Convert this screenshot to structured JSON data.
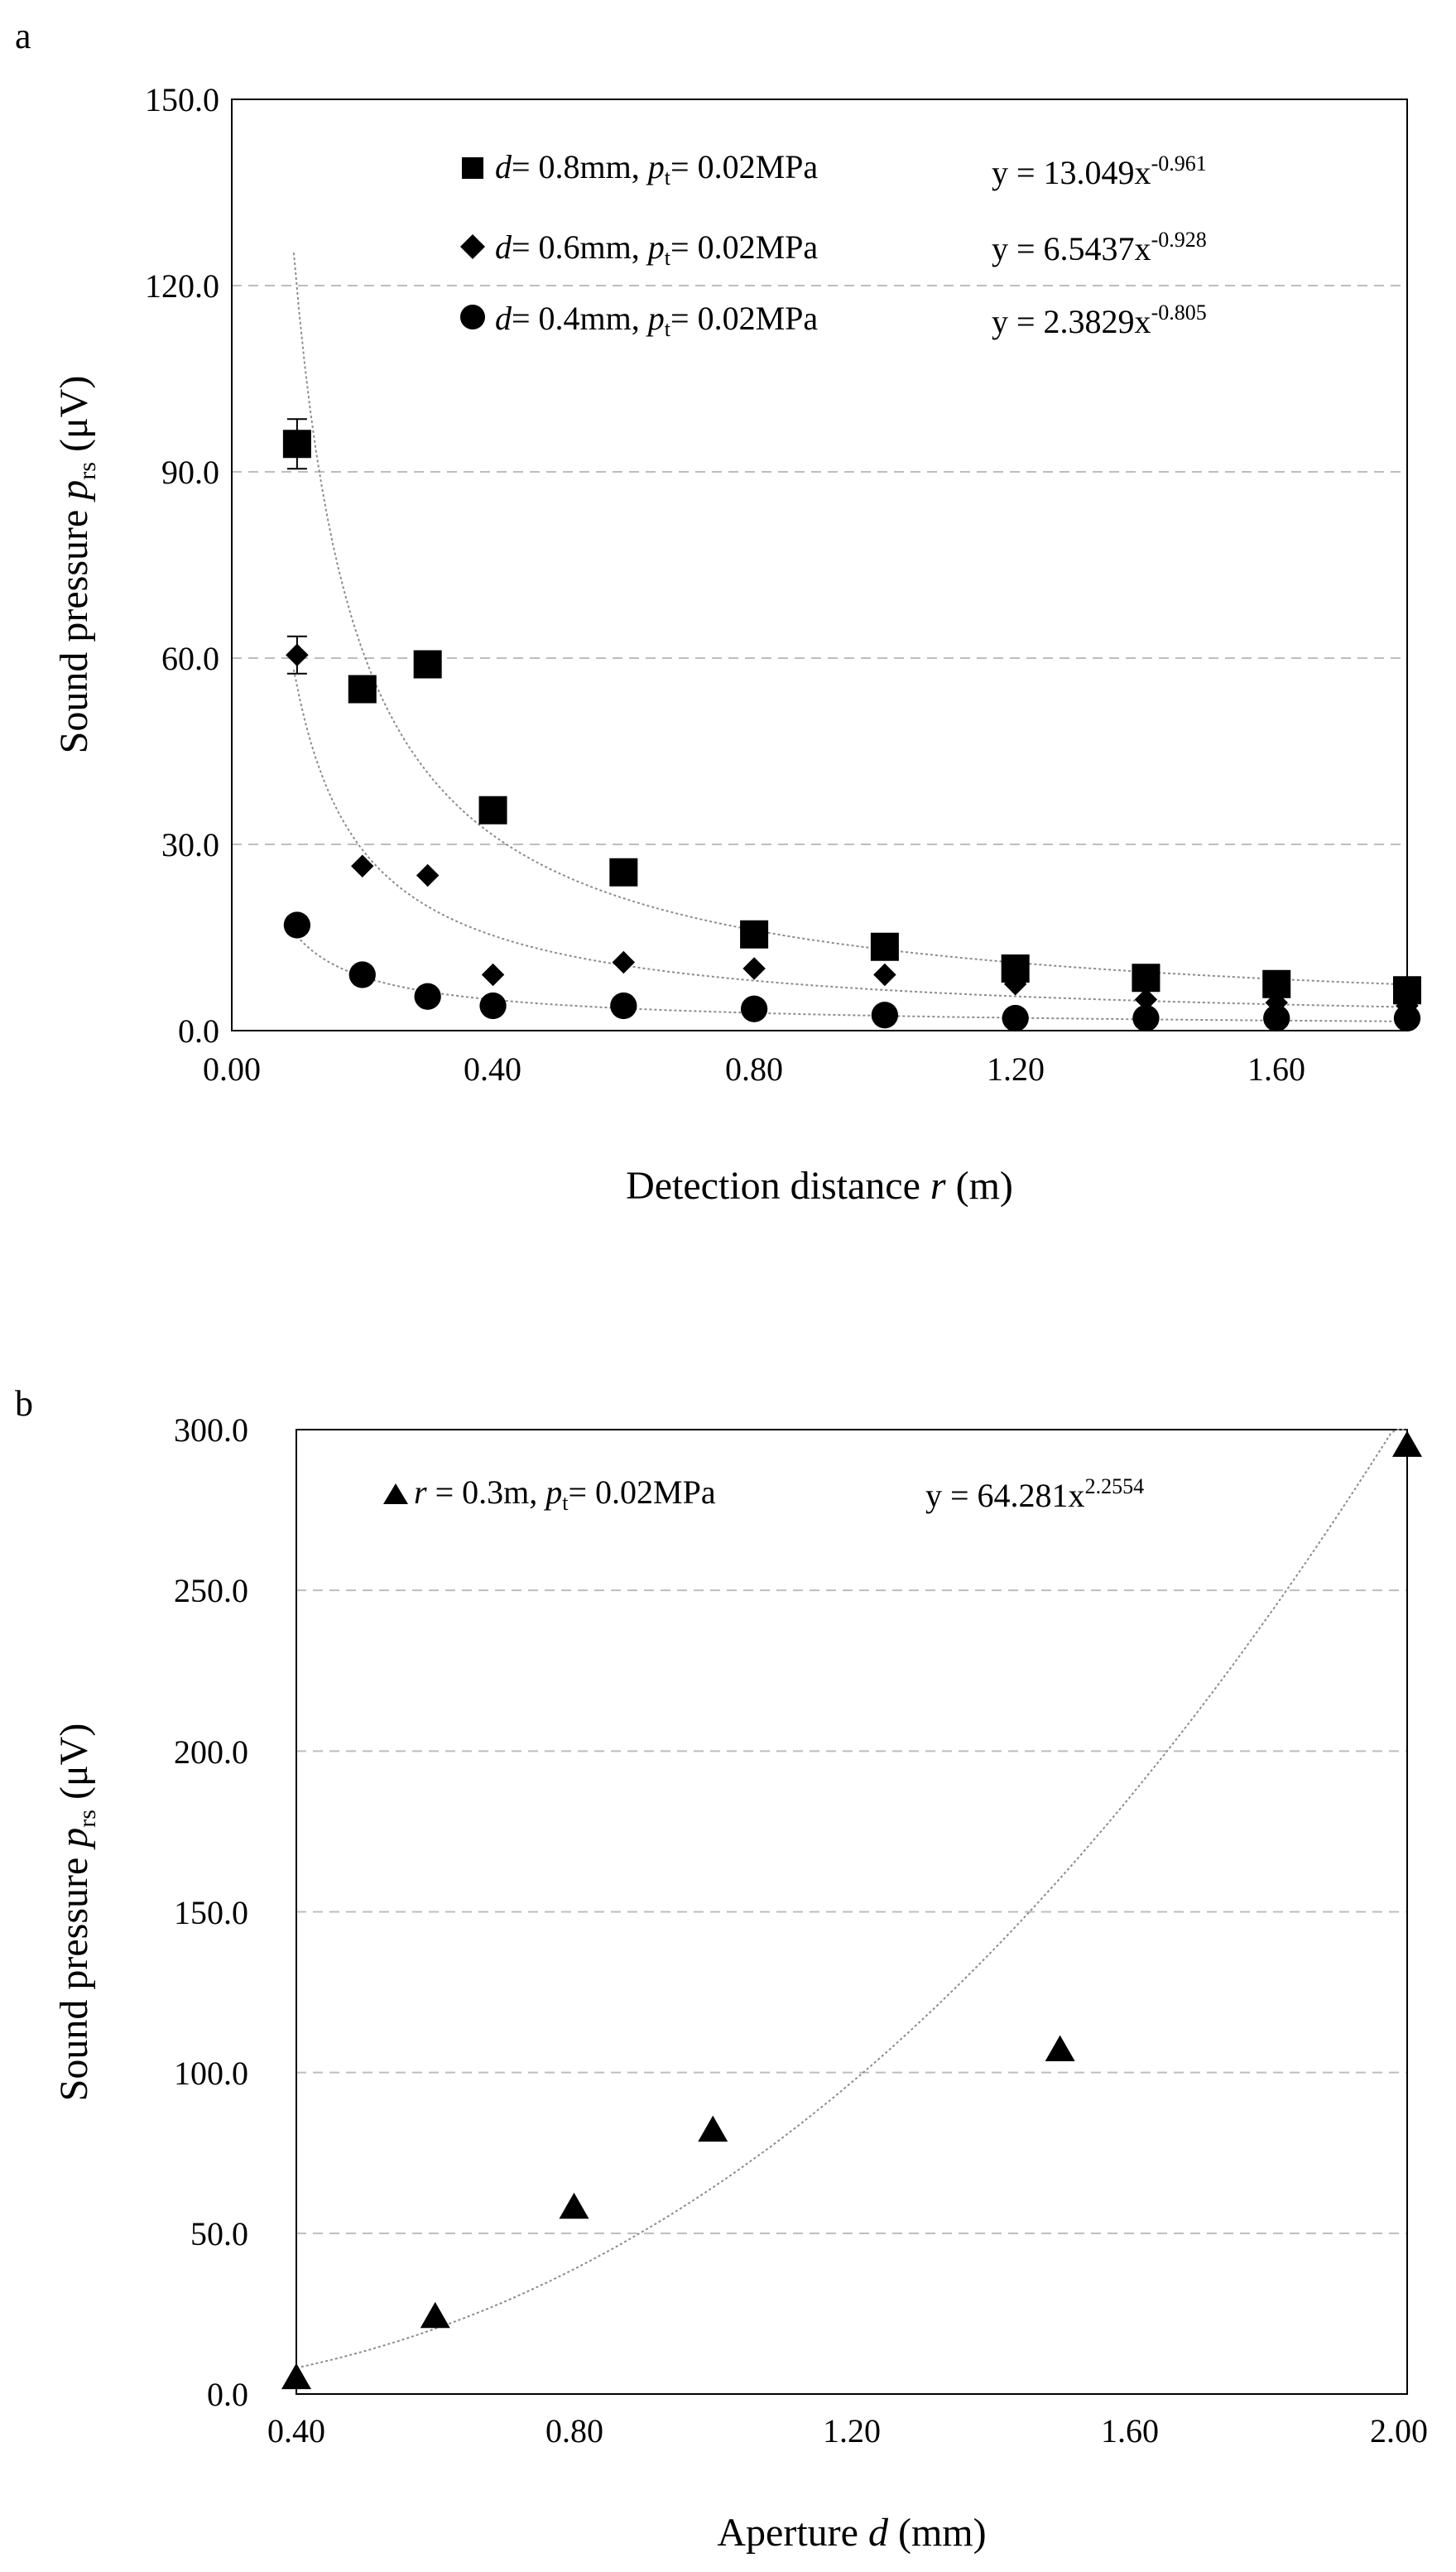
{
  "chart_data": [
    {
      "panel_label": "a",
      "type": "scatter",
      "xlabel": "Detection distance",
      "xlabel_var": "r",
      "xlabel_unit": "(m)",
      "ylabel": "Sound pressure",
      "ylabel_var": "p",
      "ylabel_sub": "rs",
      "ylabel_unit": "(μV)",
      "xlim": [
        0,
        1.8
      ],
      "ylim": [
        0,
        150
      ],
      "xticks": [
        "0.00",
        "0.40",
        "0.80",
        "1.20",
        "1.60"
      ],
      "xtick_values": [
        0,
        0.4,
        0.8,
        1.2,
        1.6
      ],
      "yticks": [
        "0.0",
        "30.0",
        "60.0",
        "90.0",
        "120.0",
        "150.0"
      ],
      "ytick_values": [
        0,
        30,
        60,
        90,
        120,
        150
      ],
      "grid": "horizontal-dashed",
      "series": [
        {
          "marker": "square",
          "label_var": "d",
          "label_d": "= 0.8mm,",
          "label_pvar": "p",
          "label_psub": "t",
          "label_p": "= 0.02MPa",
          "eq_prefix": "y = 13.049x",
          "eq_exp": "-0.961",
          "fit_a": 13.049,
          "fit_b": -0.961,
          "x": [
            0.1,
            0.2,
            0.3,
            0.4,
            0.6,
            0.8,
            1.0,
            1.2,
            1.4,
            1.6,
            1.8
          ],
          "y": [
            94.5,
            55,
            59,
            35.5,
            25.5,
            15.5,
            13.5,
            10,
            8.5,
            7.5,
            6.5
          ],
          "err": [
            4,
            0,
            0,
            0,
            0,
            0,
            0,
            0,
            0,
            0,
            0
          ]
        },
        {
          "marker": "diamond",
          "label_var": "d",
          "label_d": "= 0.6mm,",
          "label_pvar": "p",
          "label_psub": "t",
          "label_p": "= 0.02MPa",
          "eq_prefix": "y = 6.5437x",
          "eq_exp": "-0.928",
          "fit_a": 6.5437,
          "fit_b": -0.928,
          "x": [
            0.1,
            0.2,
            0.3,
            0.4,
            0.6,
            0.8,
            1.0,
            1.2,
            1.4,
            1.6,
            1.8
          ],
          "y": [
            60.5,
            26.5,
            25,
            9,
            11,
            10,
            9,
            7.5,
            5,
            4.5,
            4
          ],
          "err": [
            3,
            0,
            0,
            0,
            0,
            0,
            0,
            0,
            0,
            0,
            0
          ]
        },
        {
          "marker": "circle",
          "label_var": "d",
          "label_d": "= 0.4mm,",
          "label_pvar": "p",
          "label_psub": "t",
          "label_p": "= 0.02MPa",
          "eq_prefix": "y = 2.3829x",
          "eq_exp": "-0.805",
          "fit_a": 2.3829,
          "fit_b": -0.805,
          "x": [
            0.1,
            0.2,
            0.3,
            0.4,
            0.6,
            0.8,
            1.0,
            1.2,
            1.4,
            1.6,
            1.8
          ],
          "y": [
            17,
            9,
            5.5,
            4,
            4,
            3.5,
            2.5,
            2,
            2,
            2,
            2
          ],
          "err": [
            0,
            0,
            0,
            0,
            0,
            0,
            0,
            0,
            0,
            0,
            0
          ]
        }
      ]
    },
    {
      "panel_label": "b",
      "type": "scatter",
      "xlabel": "Aperture",
      "xlabel_var": "d",
      "xlabel_unit": "(mm)",
      "ylabel": "Sound pressure",
      "ylabel_var": "p",
      "ylabel_sub": "rs",
      "ylabel_unit": "(μV)",
      "xlim": [
        0.4,
        2.0
      ],
      "ylim": [
        0,
        300
      ],
      "xticks": [
        "0.40",
        "0.80",
        "1.20",
        "1.60",
        "2.00"
      ],
      "xtick_values": [
        0.4,
        0.8,
        1.2,
        1.6,
        2.0
      ],
      "yticks": [
        "0.0",
        "50.0",
        "100.0",
        "150.0",
        "200.0",
        "250.0",
        "300.0"
      ],
      "ytick_values": [
        0,
        50,
        100,
        150,
        200,
        250,
        300
      ],
      "grid": "horizontal-dashed",
      "series": [
        {
          "marker": "triangle",
          "label_var": "r",
          "label_d": "= 0.3m,",
          "label_pvar": "p",
          "label_psub": "t",
          "label_p": "= 0.02MPa",
          "eq_prefix": "y = 64.281x",
          "eq_exp": "2.2554",
          "fit_a": 64.281,
          "fit_b": 2.2554,
          "x": [
            0.4,
            0.6,
            0.8,
            1.0,
            1.5,
            2.0
          ],
          "y": [
            5,
            24,
            58,
            82,
            107,
            295
          ]
        }
      ]
    }
  ]
}
